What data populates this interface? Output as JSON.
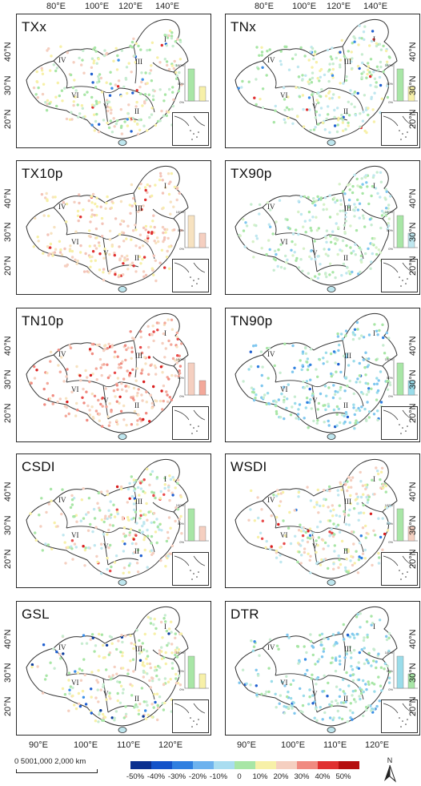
{
  "top_lon_labels": [
    "80°E",
    "100°E",
    "120°E",
    "140°E"
  ],
  "bottom_lon_labels": [
    "90°E",
    "100°E",
    "110°E",
    "120°E"
  ],
  "lat_labels": [
    "40°N",
    "30°N",
    "20°N"
  ],
  "region_labels": [
    "I",
    "II",
    "III",
    "IV",
    "V",
    "VI"
  ],
  "inset_bar_ticks": [
    "100%",
    "50%",
    "0%"
  ],
  "panels": [
    {
      "title": "TXx",
      "palette": [
        "#a8e6a6",
        "#f7f0a8",
        "#c7ecd0",
        "#f5cfc0"
      ],
      "accents": [
        "#1f5fd0",
        "#3b8ee8",
        "#e03030"
      ]
    },
    {
      "title": "TNx",
      "palette": [
        "#a8e6a6",
        "#f7f0a8",
        "#c7ecd0",
        "#bfe7ef"
      ],
      "accents": [
        "#1f5fd0",
        "#3b8ee8",
        "#e03030"
      ]
    },
    {
      "title": "TX10p",
      "palette": [
        "#f7e2c0",
        "#f5cfc0",
        "#f7f0a8",
        "#f3c3b8"
      ],
      "accents": [
        "#e03030"
      ]
    },
    {
      "title": "TX90p",
      "palette": [
        "#a8e6a6",
        "#bfe7ef",
        "#c7ecd0",
        "#d6f1c8"
      ],
      "accents": [
        "#7fc7ef"
      ]
    },
    {
      "title": "TN10p",
      "palette": [
        "#f5cfc0",
        "#f3a89a",
        "#f7e2c0",
        "#f08a80"
      ],
      "accents": [
        "#d91e1e",
        "#e84a4a"
      ]
    },
    {
      "title": "TN90p",
      "palette": [
        "#a8e6a6",
        "#9adcea",
        "#c7ecd0",
        "#7fc7ef"
      ],
      "accents": [
        "#2f7fe0",
        "#1f5fd0"
      ]
    },
    {
      "title": "CSDI",
      "palette": [
        "#a8e6a6",
        "#f5cfc0",
        "#f7f0a8",
        "#bfe7ef"
      ],
      "accents": [
        "#d91e1e",
        "#1f5fd0",
        "#e84a4a"
      ]
    },
    {
      "title": "WSDI",
      "palette": [
        "#a8e6a6",
        "#f5cfc0",
        "#f7f0a8",
        "#bfe7ef"
      ],
      "accents": [
        "#d91e1e",
        "#e84a4a",
        "#2f7fe0"
      ]
    },
    {
      "title": "GSL",
      "palette": [
        "#a8e6a6",
        "#f7f0a8",
        "#c7ecd0",
        "#f5cfc0"
      ],
      "accents": [
        "#0b3b9c",
        "#1f5fd0",
        "#3b8ee8"
      ]
    },
    {
      "title": "DTR",
      "palette": [
        "#9adcea",
        "#a8e6a6",
        "#7fc7ef",
        "#c7ecd0"
      ],
      "accents": [
        "#1f5fd0",
        "#3b8ee8"
      ]
    }
  ],
  "legend": {
    "labels": [
      "-50%",
      "-40%",
      "-30%",
      "-20%",
      "-10%",
      "0",
      "10%",
      "20%",
      "30%",
      "40%",
      "50%"
    ],
    "colors": [
      "#0b2f8f",
      "#1352c9",
      "#2f7fe0",
      "#6db2ee",
      "#a9ddf0",
      "#a8e6a6",
      "#f7f0a8",
      "#f5cfc0",
      "#f08a80",
      "#e03030",
      "#b50f0f"
    ]
  },
  "scale": {
    "label": "0  5001,000     2,000 km"
  },
  "north_label": "N"
}
